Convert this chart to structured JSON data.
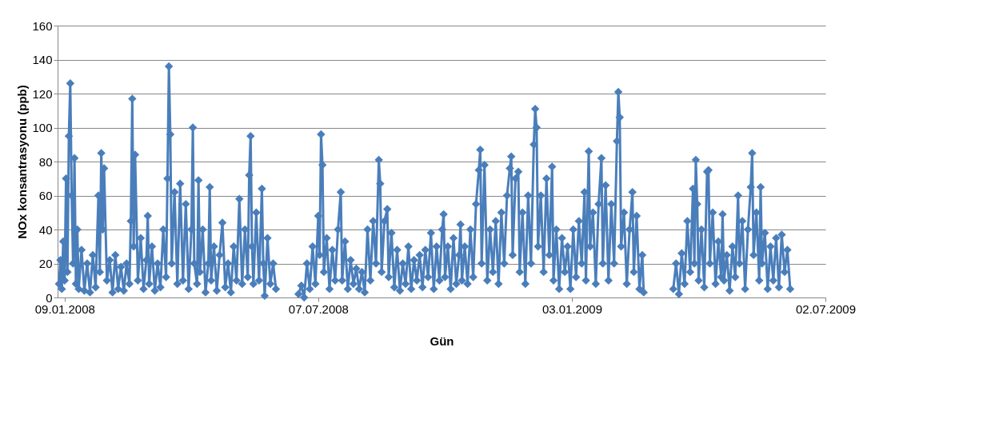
{
  "chart_data": {
    "type": "line",
    "xlabel": "Gün",
    "ylabel": "NOx konsantrasyonu (ppb)",
    "color": "#4a7ebb",
    "marker": "diamond",
    "line_style": "solid",
    "grid": "y",
    "xlim": [
      "2008-01-04",
      "2009-07-02"
    ],
    "xticks": [
      {
        "value": "2008-01-09",
        "label": "09.01.2008"
      },
      {
        "value": "2008-07-07",
        "label": "07.07.2008"
      },
      {
        "value": "2009-01-03",
        "label": "03.01.2009"
      },
      {
        "value": "2009-07-02",
        "label": "02.07.2009"
      }
    ],
    "ylim": [
      0,
      160
    ],
    "yticks": [
      0,
      20,
      40,
      60,
      80,
      100,
      120,
      140,
      160
    ],
    "x": [
      "2008-01-05",
      "2008-01-06",
      "2008-01-07",
      "2008-01-08",
      "2008-01-09",
      "2008-01-10",
      "2008-01-11",
      "2008-01-12",
      "2008-01-13",
      "2008-01-14",
      "2008-01-15",
      "2008-01-16",
      "2008-01-17",
      "2008-01-18",
      "2008-01-19",
      "2008-01-21",
      "2008-01-23",
      "2008-01-25",
      "2008-01-27",
      "2008-01-29",
      "2008-01-31",
      "2008-02-02",
      "2008-02-03",
      "2008-02-04",
      "2008-02-05",
      "2008-02-06",
      "2008-02-08",
      "2008-02-10",
      "2008-02-12",
      "2008-02-14",
      "2008-02-16",
      "2008-02-18",
      "2008-02-20",
      "2008-02-22",
      "2008-02-24",
      "2008-02-25",
      "2008-02-26",
      "2008-02-27",
      "2008-02-28",
      "2008-03-01",
      "2008-03-03",
      "2008-03-05",
      "2008-03-07",
      "2008-03-08",
      "2008-03-09",
      "2008-03-11",
      "2008-03-13",
      "2008-03-15",
      "2008-03-17",
      "2008-03-19",
      "2008-03-21",
      "2008-03-22",
      "2008-03-23",
      "2008-03-24",
      "2008-03-25",
      "2008-03-27",
      "2008-03-29",
      "2008-03-31",
      "2008-04-02",
      "2008-04-04",
      "2008-04-06",
      "2008-04-08",
      "2008-04-09",
      "2008-04-10",
      "2008-04-12",
      "2008-04-13",
      "2008-04-14",
      "2008-04-16",
      "2008-04-18",
      "2008-04-20",
      "2008-04-21",
      "2008-04-22",
      "2008-04-24",
      "2008-04-26",
      "2008-04-28",
      "2008-04-30",
      "2008-05-02",
      "2008-05-04",
      "2008-05-06",
      "2008-05-08",
      "2008-05-10",
      "2008-05-12",
      "2008-05-14",
      "2008-05-16",
      "2008-05-18",
      "2008-05-19",
      "2008-05-20",
      "2008-05-21",
      "2008-05-22",
      "2008-05-24",
      "2008-05-26",
      "2008-05-28",
      "2008-05-29",
      "2008-05-30",
      "2008-06-01",
      "2008-06-03",
      "2008-06-05",
      "2008-06-07",
      "2008-06-15",
      "2008-06-23",
      "2008-06-25",
      "2008-06-27",
      "2008-06-29",
      "2008-07-01",
      "2008-07-03",
      "2008-07-05",
      "2008-07-07",
      "2008-07-08",
      "2008-07-09",
      "2008-07-10",
      "2008-07-11",
      "2008-07-13",
      "2008-07-15",
      "2008-07-17",
      "2008-07-19",
      "2008-07-21",
      "2008-07-23",
      "2008-07-24",
      "2008-07-26",
      "2008-07-28",
      "2008-07-30",
      "2008-08-01",
      "2008-08-03",
      "2008-08-05",
      "2008-08-07",
      "2008-08-09",
      "2008-08-11",
      "2008-08-13",
      "2008-08-15",
      "2008-08-17",
      "2008-08-19",
      "2008-08-20",
      "2008-08-21",
      "2008-08-23",
      "2008-08-25",
      "2008-08-26",
      "2008-08-28",
      "2008-08-30",
      "2008-09-01",
      "2008-09-03",
      "2008-09-05",
      "2008-09-07",
      "2008-09-09",
      "2008-09-11",
      "2008-09-13",
      "2008-09-15",
      "2008-09-17",
      "2008-09-19",
      "2008-09-21",
      "2008-09-23",
      "2008-09-25",
      "2008-09-27",
      "2008-09-29",
      "2008-10-01",
      "2008-10-03",
      "2008-10-04",
      "2008-10-05",
      "2008-10-07",
      "2008-10-09",
      "2008-10-11",
      "2008-10-13",
      "2008-10-15",
      "2008-10-16",
      "2008-10-17",
      "2008-10-19",
      "2008-10-21",
      "2008-10-23",
      "2008-10-25",
      "2008-10-27",
      "2008-10-29",
      "2008-10-30",
      "2008-10-31",
      "2008-11-02",
      "2008-11-04",
      "2008-11-06",
      "2008-11-08",
      "2008-11-10",
      "2008-11-12",
      "2008-11-14",
      "2008-11-16",
      "2008-11-18",
      "2008-11-20",
      "2008-11-21",
      "2008-11-22",
      "2008-11-24",
      "2008-11-26",
      "2008-11-27",
      "2008-11-29",
      "2008-12-01",
      "2008-12-03",
      "2008-12-05",
      "2008-12-07",
      "2008-12-08",
      "2008-12-09",
      "2008-12-10",
      "2008-12-12",
      "2008-12-14",
      "2008-12-16",
      "2008-12-18",
      "2008-12-20",
      "2008-12-21",
      "2008-12-23",
      "2008-12-25",
      "2008-12-27",
      "2008-12-29",
      "2008-12-31",
      "2009-01-02",
      "2009-01-04",
      "2009-01-06",
      "2009-01-08",
      "2009-01-10",
      "2009-01-12",
      "2009-01-13",
      "2009-01-15",
      "2009-01-16",
      "2009-01-18",
      "2009-01-20",
      "2009-01-22",
      "2009-01-24",
      "2009-01-25",
      "2009-01-27",
      "2009-01-29",
      "2009-01-31",
      "2009-02-02",
      "2009-02-04",
      "2009-02-05",
      "2009-02-06",
      "2009-02-07",
      "2009-02-09",
      "2009-02-11",
      "2009-02-13",
      "2009-02-15",
      "2009-02-16",
      "2009-02-18",
      "2009-02-20",
      "2009-02-22",
      "2009-02-23",
      "2009-03-04",
      "2009-03-16",
      "2009-03-18",
      "2009-03-20",
      "2009-03-22",
      "2009-03-24",
      "2009-03-26",
      "2009-03-28",
      "2009-03-30",
      "2009-03-31",
      "2009-04-01",
      "2009-04-02",
      "2009-04-03",
      "2009-04-05",
      "2009-04-07",
      "2009-04-09",
      "2009-04-10",
      "2009-04-11",
      "2009-04-13",
      "2009-04-15",
      "2009-04-17",
      "2009-04-19",
      "2009-04-20",
      "2009-04-21",
      "2009-04-23",
      "2009-04-25",
      "2009-04-27",
      "2009-04-29",
      "2009-05-01",
      "2009-05-02",
      "2009-05-04",
      "2009-05-06",
      "2009-05-08",
      "2009-05-10",
      "2009-05-11",
      "2009-05-12",
      "2009-05-14",
      "2009-05-16",
      "2009-05-17",
      "2009-05-18",
      "2009-05-20",
      "2009-05-22",
      "2009-05-24",
      "2009-05-26",
      "2009-05-28",
      "2009-05-30",
      "2009-06-01",
      "2009-06-03",
      "2009-06-05",
      "2009-06-07"
    ],
    "values": [
      8,
      22,
      5,
      33,
      10,
      70,
      15,
      95,
      126,
      60,
      20,
      82,
      8,
      40,
      5,
      28,
      4,
      20,
      3,
      25,
      6,
      60,
      15,
      85,
      40,
      76,
      10,
      22,
      3,
      25,
      5,
      18,
      4,
      20,
      8,
      45,
      117,
      30,
      84,
      10,
      35,
      5,
      22,
      48,
      8,
      30,
      4,
      20,
      6,
      40,
      12,
      70,
      136,
      96,
      20,
      62,
      8,
      67,
      10,
      55,
      5,
      40,
      100,
      20,
      8,
      69,
      15,
      40,
      3,
      20,
      65,
      10,
      30,
      4,
      25,
      44,
      6,
      20,
      3,
      30,
      10,
      58,
      8,
      40,
      12,
      72,
      95,
      30,
      8,
      50,
      10,
      64,
      20,
      1,
      35,
      8,
      20,
      5,
      null,
      2,
      7,
      0,
      20,
      5,
      30,
      8,
      48,
      25,
      96,
      78,
      15,
      35,
      5,
      28,
      10,
      40,
      62,
      10,
      33,
      5,
      22,
      8,
      17,
      5,
      15,
      3,
      40,
      10,
      45,
      20,
      81,
      67,
      15,
      45,
      52,
      12,
      38,
      6,
      28,
      4,
      20,
      8,
      30,
      5,
      22,
      10,
      25,
      6,
      28,
      12,
      38,
      5,
      30,
      10,
      40,
      49,
      12,
      30,
      5,
      35,
      8,
      25,
      43,
      10,
      30,
      8,
      40,
      12,
      55,
      75,
      87,
      20,
      78,
      10,
      40,
      15,
      45,
      8,
      50,
      20,
      60,
      76,
      83,
      25,
      70,
      74,
      15,
      50,
      8,
      60,
      20,
      90,
      111,
      100,
      30,
      60,
      15,
      70,
      25,
      77,
      10,
      40,
      5,
      35,
      15,
      30,
      5,
      40,
      12,
      45,
      20,
      62,
      10,
      86,
      30,
      50,
      8,
      55,
      82,
      20,
      66,
      10,
      55,
      20,
      92,
      121,
      106,
      30,
      50,
      8,
      40,
      62,
      15,
      48,
      5,
      25,
      3,
      null,
      5,
      20,
      2,
      26,
      8,
      45,
      15,
      64,
      20,
      81,
      55,
      10,
      40,
      6,
      74,
      75,
      20,
      50,
      8,
      33,
      12,
      49,
      10,
      25,
      4,
      30,
      12,
      60,
      20,
      45,
      5,
      40,
      65,
      85,
      25,
      50,
      10,
      65,
      20,
      38,
      5,
      30,
      10,
      35,
      6,
      37,
      15,
      28,
      5
    ]
  }
}
